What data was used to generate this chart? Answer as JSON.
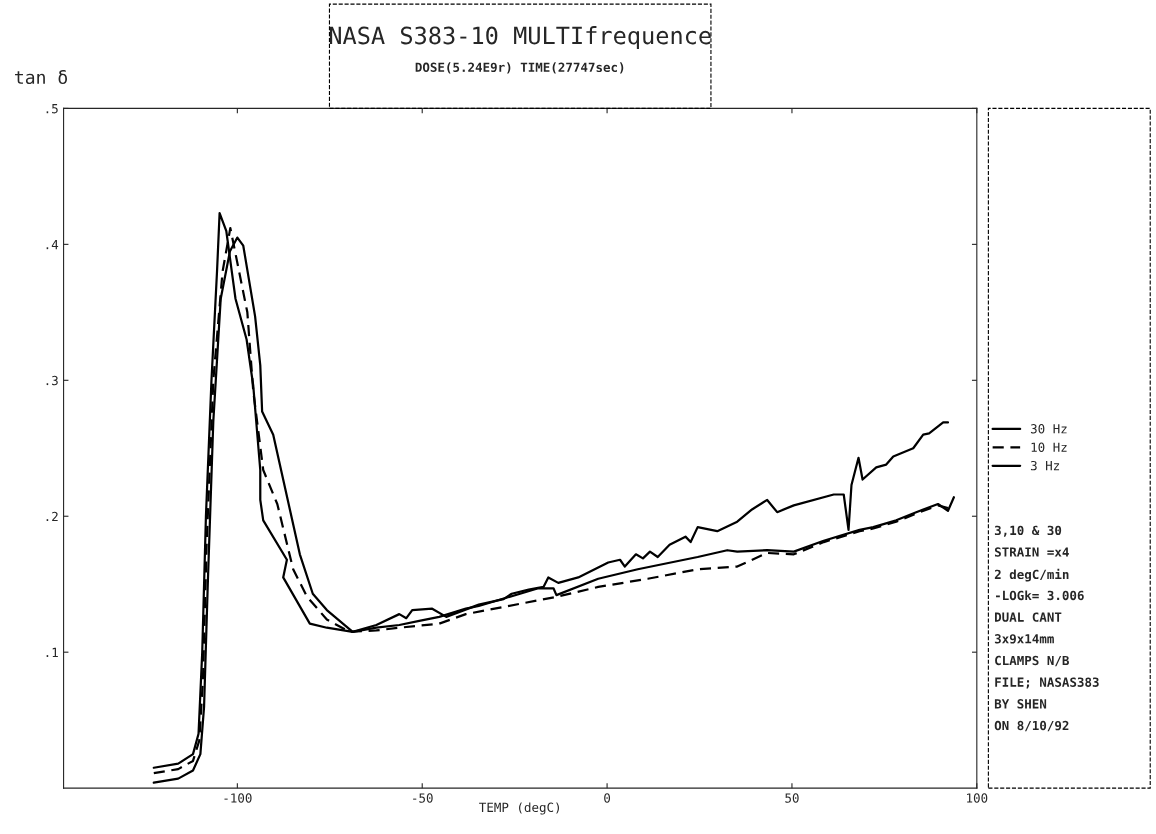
{
  "chart_data": {
    "type": "line",
    "title": "NASA S383-10 MULTIfrequence",
    "subtitle": "DOSE(5.24E9r) TIME(27747sec)",
    "xlabel": "TEMP (degC)",
    "ylabel": "tan δ",
    "xlim": [
      -147,
      100
    ],
    "ylim": [
      0,
      0.5
    ],
    "xticks": [
      -100,
      -50,
      0,
      50,
      100
    ],
    "yticks": [
      {
        "value": 0.1,
        "label": ".1"
      },
      {
        "value": 0.2,
        "label": ".2"
      },
      {
        "value": 0.3,
        "label": ".3"
      },
      {
        "value": 0.4,
        "label": ".4"
      },
      {
        "value": 0.5,
        "label": ".5"
      }
    ],
    "grid": false,
    "legend": "right",
    "marker": "none",
    "series": [
      {
        "name": "30 Hz",
        "color": "#000000",
        "line_style": "solid",
        "x": [
          -122.6,
          -116,
          -112,
          -110,
          -109,
          -108,
          -106.5,
          -104.5,
          -102,
          -100,
          -98.4,
          -95.2,
          -93.8,
          -93.3,
          -90.3,
          -83.1,
          -79.6,
          -75.8,
          -68.8,
          -62.4,
          -56.2,
          -50.8,
          -45.4,
          -38.2,
          -34.7,
          -18.6,
          -14.5,
          -13.7,
          -2.4,
          8.3,
          24.5,
          32.5,
          35.2,
          43.3,
          50.5,
          58.6,
          68.3,
          72,
          78.2,
          83.6,
          89.5,
          92.2,
          93.8
        ],
        "values": [
          0.004,
          0.007,
          0.013,
          0.025,
          0.06,
          0.15,
          0.27,
          0.36,
          0.395,
          0.405,
          0.399,
          0.347,
          0.311,
          0.277,
          0.26,
          0.172,
          0.143,
          0.131,
          0.115,
          0.118,
          0.12,
          0.123,
          0.126,
          0.132,
          0.134,
          0.147,
          0.147,
          0.142,
          0.154,
          0.161,
          0.17,
          0.175,
          0.174,
          0.175,
          0.174,
          0.182,
          0.19,
          0.192,
          0.197,
          0.203,
          0.209,
          0.204,
          0.214
        ]
      },
      {
        "name": "10 Hz",
        "color": "#000000",
        "line_style": "dashed",
        "x": [
          -122.6,
          -116,
          -112,
          -110.3,
          -109.3,
          -108.3,
          -106.5,
          -104,
          -101.9,
          -97.3,
          -95.7,
          -93,
          -89.2,
          -84.9,
          -81.2,
          -75.8,
          -69.6,
          -62.4,
          -56.2,
          -45.4,
          -38.2,
          -13.2,
          -2.4,
          11,
          24.5,
          35.2,
          43.3,
          50.5,
          58.6,
          68.3,
          72,
          78.2,
          83.6,
          89.5,
          92.2
        ],
        "values": [
          0.011,
          0.014,
          0.02,
          0.035,
          0.08,
          0.18,
          0.3,
          0.38,
          0.412,
          0.35,
          0.292,
          0.234,
          0.209,
          0.161,
          0.141,
          0.124,
          0.115,
          0.116,
          0.118,
          0.121,
          0.128,
          0.141,
          0.148,
          0.154,
          0.161,
          0.163,
          0.173,
          0.172,
          0.181,
          0.189,
          0.191,
          0.196,
          0.202,
          0.208,
          0.206
        ]
      },
      {
        "name": "3 Hz",
        "color": "#000000",
        "line_style": "solid",
        "x": [
          -122.6,
          -116,
          -112,
          -110.5,
          -109.5,
          -108.5,
          -107,
          -105.5,
          -104.8,
          -103,
          -101.5,
          -100.5,
          -97.5,
          -95.7,
          -93.8,
          -93.8,
          -93,
          -86.6,
          -87.6,
          -80.4,
          -75.8,
          -68.8,
          -62.4,
          -56.2,
          -54.3,
          -52.7,
          -47.3,
          -43.5,
          -34.7,
          -28,
          -25.8,
          -21.2,
          -17.2,
          -15.9,
          -13.2,
          -7.8,
          0.3,
          3.5,
          4.8,
          7.8,
          9.7,
          11.6,
          13.7,
          16.9,
          21.2,
          22.6,
          24.5,
          29.8,
          35.2,
          39.2,
          43.3,
          46,
          50.5,
          61.3,
          64,
          65.3,
          66.1,
          68,
          69.1,
          72.8,
          75.5,
          77.4,
          82.8,
          85.5,
          87.1,
          90.9,
          92.2
        ],
        "values": [
          0.015,
          0.018,
          0.025,
          0.04,
          0.1,
          0.2,
          0.3,
          0.38,
          0.423,
          0.41,
          0.38,
          0.36,
          0.33,
          0.296,
          0.234,
          0.212,
          0.197,
          0.168,
          0.155,
          0.121,
          0.118,
          0.115,
          0.12,
          0.128,
          0.125,
          0.131,
          0.132,
          0.126,
          0.135,
          0.139,
          0.143,
          0.146,
          0.148,
          0.155,
          0.151,
          0.155,
          0.166,
          0.168,
          0.163,
          0.172,
          0.169,
          0.174,
          0.17,
          0.179,
          0.185,
          0.181,
          0.192,
          0.189,
          0.196,
          0.205,
          0.212,
          0.203,
          0.208,
          0.216,
          0.216,
          0.19,
          0.223,
          0.243,
          0.227,
          0.236,
          0.238,
          0.244,
          0.25,
          0.26,
          0.261,
          0.269,
          0.269
        ]
      }
    ],
    "annotations": [
      "3,10 & 30",
      "STRAIN =x4",
      "2 degC/min",
      "-LOGk= 3.006",
      "DUAL CANT",
      "3x9x14mm",
      "CLAMPS N/B",
      "FILE; NASAS383",
      "BY SHEN",
      "ON 8/10/92"
    ]
  }
}
